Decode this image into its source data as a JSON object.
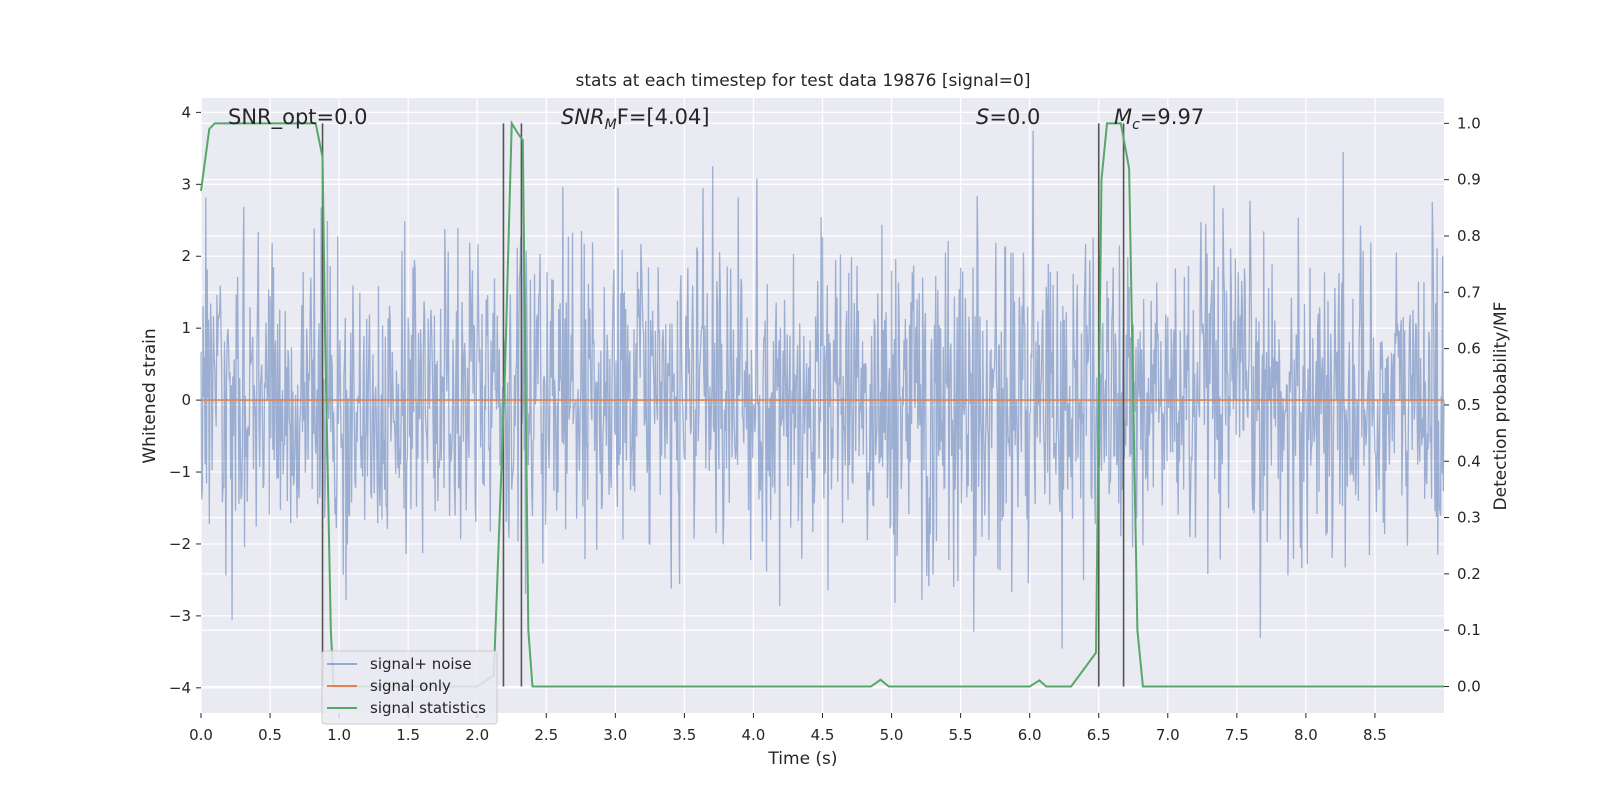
{
  "chart_data": {
    "type": "line",
    "title": "stats at each timestep for test data 19876 [signal=0]",
    "xlabel": "Time (s)",
    "ylabel_left": "Whitened strain",
    "ylabel_right": "Detection probability/MF",
    "xlim": [
      0,
      9.0
    ],
    "ylim_left": [
      -4.35,
      4.2
    ],
    "ylim_right": [
      -0.047,
      1.045
    ],
    "x_ticks": [
      "0.0",
      "0.5",
      "1.0",
      "1.5",
      "2.0",
      "2.5",
      "3.0",
      "3.5",
      "4.0",
      "4.5",
      "5.0",
      "5.5",
      "6.0",
      "6.5",
      "7.0",
      "7.5",
      "8.0",
      "8.5"
    ],
    "y_ticks_left": [
      "4",
      "3",
      "2",
      "1",
      "0",
      "−1",
      "−2",
      "−3",
      "−4"
    ],
    "y_ticks_right": [
      "1.0",
      "0.9",
      "0.8",
      "0.7",
      "0.6",
      "0.5",
      "0.4",
      "0.3",
      "0.2",
      "0.1",
      "0.0"
    ],
    "grid": true,
    "legend_position": "lower-left",
    "colors": {
      "noise": "#4c72b0",
      "signal": "#dd8452",
      "stats": "#55a868",
      "vlines": "#555555",
      "background": "#eaeaf2",
      "grid": "#ffffff"
    },
    "annotations": {
      "snr_opt": "SNR_opt=0.0",
      "snr_mf_base": "SNR",
      "snr_mf_sub": "M",
      "snr_mf_suffix": "F=[4.04]",
      "s_italic": "S",
      "s_value": "=0.0",
      "mc_base": "M",
      "mc_sub": "c",
      "mc_value": "=9.97"
    },
    "series": [
      {
        "name": "signal+ noise",
        "kind": "noise",
        "amplitude_std": 1.0,
        "peak_range": [
          -4.0,
          3.85
        ],
        "x_range": [
          0,
          9.0
        ]
      },
      {
        "name": "signal only",
        "kind": "constant",
        "y": 0.0
      },
      {
        "name": "signal statistics",
        "kind": "line",
        "axis": "right",
        "x": [
          0.0,
          0.06,
          0.1,
          0.2,
          0.4,
          0.6,
          0.83,
          0.88,
          0.9,
          0.94,
          0.96,
          2.0,
          2.12,
          2.2,
          2.25,
          2.3,
          2.33,
          2.37,
          2.4,
          2.6,
          4.85,
          4.92,
          4.98,
          5.05,
          5.5,
          6.0,
          6.07,
          6.12,
          6.3,
          6.48,
          6.52,
          6.56,
          6.66,
          6.72,
          6.78,
          6.82,
          6.86,
          9.0
        ],
        "y": [
          0.88,
          0.99,
          1.0,
          1.0,
          1.0,
          1.0,
          1.0,
          0.94,
          0.6,
          0.1,
          0.0,
          0.0,
          0.02,
          0.55,
          1.0,
          0.98,
          0.97,
          0.1,
          0.0,
          0.0,
          0.0,
          0.012,
          0.0,
          0.0,
          0.0,
          0.0,
          0.011,
          0.0,
          0.0,
          0.06,
          0.9,
          1.0,
          1.0,
          0.92,
          0.1,
          0.0,
          0.0,
          0.0
        ]
      }
    ],
    "vlines": [
      0.88,
      2.19,
      2.32,
      6.5,
      6.68
    ],
    "vlines_range": [
      0.0,
      1.0
    ]
  },
  "legend": {
    "items": [
      "signal+ noise",
      "signal only",
      "signal statistics"
    ]
  }
}
